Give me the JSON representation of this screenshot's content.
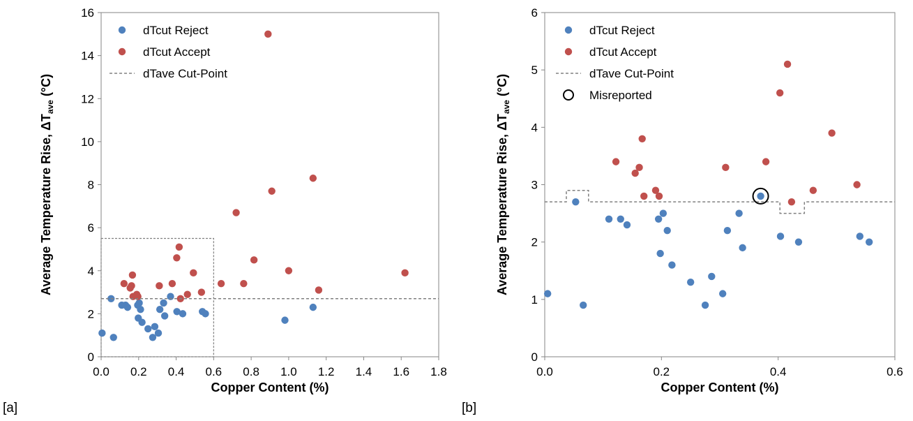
{
  "panel_labels": [
    "[a]",
    "[b]"
  ],
  "chart_data": [
    {
      "type": "scatter",
      "panel": "[a]",
      "title": "",
      "xlabel": "Copper Content (%)",
      "ylabel_main": "Average Temperature Rise, ΔT",
      "ylabel_sub": "ave",
      "ylabel_tail": " (°C)",
      "xlim": [
        0.0,
        1.8
      ],
      "ylim": [
        0,
        16
      ],
      "xticks": [
        0.0,
        0.2,
        0.4,
        0.6,
        0.8,
        1.0,
        1.2,
        1.4,
        1.6,
        1.8
      ],
      "xtick_labels": [
        "0.0",
        "0.2",
        "0.4",
        "0.6",
        "0.8",
        "1.0",
        "1.2",
        "1.4",
        "1.6",
        "1.8"
      ],
      "yticks": [
        0,
        2,
        4,
        6,
        8,
        10,
        12,
        14,
        16
      ],
      "ytick_labels": [
        "0",
        "2",
        "4",
        "6",
        "8",
        "10",
        "12",
        "14",
        "16"
      ],
      "grid": false,
      "legend_position": "top-left",
      "series": [
        {
          "name": "dTcut Reject",
          "color": "#4f81bd",
          "points": [
            [
              0.005,
              1.1
            ],
            [
              0.053,
              2.7
            ],
            [
              0.066,
              0.9
            ],
            [
              0.11,
              2.4
            ],
            [
              0.13,
              2.4
            ],
            [
              0.141,
              2.3
            ],
            [
              0.195,
              2.4
            ],
            [
              0.198,
              1.8
            ],
            [
              0.203,
              2.5
            ],
            [
              0.21,
              2.2
            ],
            [
              0.218,
              1.6
            ],
            [
              0.25,
              1.3
            ],
            [
              0.275,
              0.9
            ],
            [
              0.286,
              1.4
            ],
            [
              0.305,
              1.1
            ],
            [
              0.313,
              2.2
            ],
            [
              0.333,
              2.5
            ],
            [
              0.339,
              1.9
            ],
            [
              0.37,
              2.8
            ],
            [
              0.404,
              2.1
            ],
            [
              0.435,
              2.0
            ],
            [
              0.54,
              2.1
            ],
            [
              0.556,
              2.0
            ],
            [
              0.98,
              1.7
            ],
            [
              1.13,
              2.3
            ]
          ]
        },
        {
          "name": "dTcut Accept",
          "color": "#c0504d",
          "points": [
            [
              0.122,
              3.4
            ],
            [
              0.155,
              3.2
            ],
            [
              0.162,
              3.3
            ],
            [
              0.167,
              3.8
            ],
            [
              0.17,
              2.8
            ],
            [
              0.19,
              2.9
            ],
            [
              0.196,
              2.8
            ],
            [
              0.31,
              3.3
            ],
            [
              0.379,
              3.4
            ],
            [
              0.403,
              4.6
            ],
            [
              0.416,
              5.1
            ],
            [
              0.423,
              2.7
            ],
            [
              0.46,
              2.9
            ],
            [
              0.492,
              3.9
            ],
            [
              0.535,
              3.0
            ],
            [
              0.64,
              3.4
            ],
            [
              0.72,
              6.7
            ],
            [
              0.76,
              3.4
            ],
            [
              0.815,
              4.5
            ],
            [
              0.89,
              15.0
            ],
            [
              0.91,
              7.7
            ],
            [
              1.0,
              4.0
            ],
            [
              1.13,
              8.3
            ],
            [
              1.16,
              3.1
            ],
            [
              1.62,
              3.9
            ]
          ]
        },
        {
          "name": "dTave Cut-Point",
          "color": "#808080",
          "style": "dashed",
          "points": [
            [
              0.0,
              2.7
            ],
            [
              1.8,
              2.7
            ]
          ]
        }
      ],
      "annotations": [
        {
          "type": "dashed-box",
          "x": [
            0.0,
            0.6
          ],
          "y": [
            0.0,
            5.5
          ],
          "color": "#808080"
        }
      ]
    },
    {
      "type": "scatter",
      "panel": "[b]",
      "title": "",
      "xlabel": "Copper Content (%)",
      "ylabel_main": "Average Temperature Rise, ΔT",
      "ylabel_sub": "ave",
      "ylabel_tail": " (°C)",
      "xlim": [
        0.0,
        0.6
      ],
      "ylim": [
        0,
        6
      ],
      "xticks": [
        0.0,
        0.2,
        0.4,
        0.6
      ],
      "xtick_labels": [
        "0.0",
        "0.2",
        "0.4",
        "0.6"
      ],
      "yticks": [
        0,
        1,
        2,
        3,
        4,
        5,
        6
      ],
      "ytick_labels": [
        "0",
        "1",
        "2",
        "3",
        "4",
        "5",
        "6"
      ],
      "grid": false,
      "legend_position": "top-left",
      "series": [
        {
          "name": "dTcut Reject",
          "color": "#4f81bd",
          "points": [
            [
              0.005,
              1.1
            ],
            [
              0.053,
              2.7
            ],
            [
              0.066,
              0.9
            ],
            [
              0.11,
              2.4
            ],
            [
              0.13,
              2.4
            ],
            [
              0.141,
              2.3
            ],
            [
              0.195,
              2.4
            ],
            [
              0.198,
              1.8
            ],
            [
              0.203,
              2.5
            ],
            [
              0.21,
              2.2
            ],
            [
              0.218,
              1.6
            ],
            [
              0.25,
              1.3
            ],
            [
              0.275,
              0.9
            ],
            [
              0.286,
              1.4
            ],
            [
              0.305,
              1.1
            ],
            [
              0.313,
              2.2
            ],
            [
              0.333,
              2.5
            ],
            [
              0.339,
              1.9
            ],
            [
              0.37,
              2.8
            ],
            [
              0.404,
              2.1
            ],
            [
              0.435,
              2.0
            ],
            [
              0.54,
              2.1
            ],
            [
              0.556,
              2.0
            ]
          ]
        },
        {
          "name": "dTcut Accept",
          "color": "#c0504d",
          "points": [
            [
              0.122,
              3.4
            ],
            [
              0.155,
              3.2
            ],
            [
              0.162,
              3.3
            ],
            [
              0.167,
              3.8
            ],
            [
              0.17,
              2.8
            ],
            [
              0.19,
              2.9
            ],
            [
              0.196,
              2.8
            ],
            [
              0.31,
              3.3
            ],
            [
              0.379,
              3.4
            ],
            [
              0.403,
              4.6
            ],
            [
              0.416,
              5.1
            ],
            [
              0.423,
              2.7
            ],
            [
              0.46,
              2.9
            ],
            [
              0.492,
              3.9
            ],
            [
              0.535,
              3.0
            ]
          ]
        },
        {
          "name": "dTave Cut-Point",
          "color": "#808080",
          "style": "dashed-step",
          "points": [
            [
              0.0,
              2.7
            ],
            [
              0.037,
              2.7
            ],
            [
              0.037,
              2.9
            ],
            [
              0.075,
              2.9
            ],
            [
              0.075,
              2.7
            ],
            [
              0.403,
              2.7
            ],
            [
              0.403,
              2.5
            ],
            [
              0.445,
              2.5
            ],
            [
              0.445,
              2.7
            ],
            [
              0.6,
              2.7
            ]
          ]
        },
        {
          "name": "Misreported",
          "color": "#000000",
          "style": "open-circle",
          "points": [
            [
              0.37,
              2.8
            ]
          ]
        }
      ]
    }
  ]
}
